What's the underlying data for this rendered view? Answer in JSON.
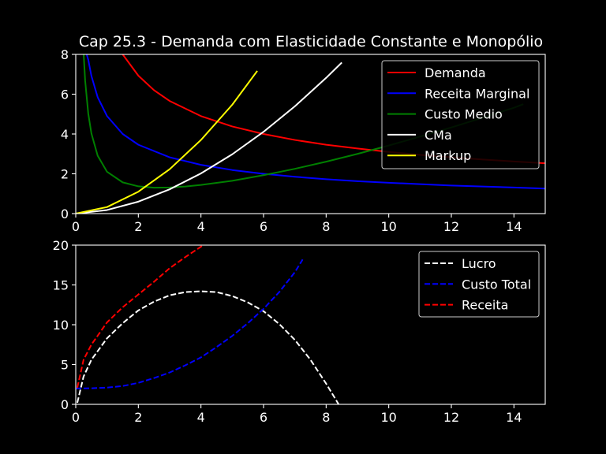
{
  "figure": {
    "title": "Cap 25.3 - Demanda com Elasticidade Constante e Monopólio",
    "background": "#000000",
    "foreground": "#ffffff"
  },
  "chart_data": [
    {
      "type": "line",
      "xlim": [
        0,
        15
      ],
      "ylim": [
        0,
        8
      ],
      "xticks": [
        "0",
        "2",
        "4",
        "6",
        "8",
        "10",
        "12",
        "14"
      ],
      "yticks": [
        "0",
        "2",
        "4",
        "6",
        "8"
      ],
      "xtick_values": [
        0,
        2,
        4,
        6,
        8,
        10,
        12,
        14
      ],
      "ytick_values": [
        0,
        2,
        4,
        6,
        8
      ],
      "legend_position": "top-right",
      "series": [
        {
          "name": "Demanda",
          "color": "#ff0000",
          "dash": false,
          "x": [
            1.5,
            2,
            2.5,
            3,
            4,
            5,
            6,
            7,
            8,
            9,
            10,
            11,
            12,
            13,
            14,
            15
          ],
          "y": [
            8.0,
            6.93,
            6.2,
            5.66,
            4.9,
            4.38,
            4.0,
            3.7,
            3.46,
            3.27,
            3.1,
            2.95,
            2.83,
            2.72,
            2.62,
            2.53
          ]
        },
        {
          "name": "Receita Marginal",
          "color": "#0000ff",
          "dash": false,
          "x": [
            0.35,
            0.4,
            0.5,
            0.7,
            1,
            1.5,
            2,
            3,
            4,
            5,
            6,
            7,
            8,
            9,
            10,
            11,
            12,
            13,
            14,
            15
          ],
          "y": [
            8.0,
            7.73,
            6.92,
            5.85,
            4.9,
            4.0,
            3.46,
            2.83,
            2.45,
            2.19,
            2.0,
            1.85,
            1.73,
            1.63,
            1.55,
            1.48,
            1.41,
            1.36,
            1.31,
            1.26
          ]
        },
        {
          "name": "Custo Medio",
          "color": "#008000",
          "dash": false,
          "x": [
            0.25,
            0.3,
            0.4,
            0.5,
            0.7,
            1,
            1.5,
            2,
            2.5,
            3,
            3.5,
            4,
            5,
            6,
            7,
            8,
            9,
            10,
            11,
            12,
            13,
            14,
            14.3
          ],
          "y": [
            8.08,
            6.69,
            5.02,
            4.03,
            2.91,
            2.1,
            1.57,
            1.37,
            1.3,
            1.31,
            1.36,
            1.44,
            1.65,
            1.93,
            2.25,
            2.61,
            3.0,
            3.42,
            3.87,
            4.33,
            4.82,
            5.32,
            5.5
          ]
        },
        {
          "name": "CMa",
          "color": "#ffffff",
          "dash": false,
          "x": [
            0,
            1,
            2,
            3,
            4,
            5,
            6,
            7,
            8,
            8.5
          ],
          "y": [
            0,
            0.18,
            0.6,
            1.22,
            2.02,
            2.98,
            4.11,
            5.39,
            6.82,
            7.59
          ]
        },
        {
          "name": "Markup",
          "color": "#ffff00",
          "dash": false,
          "x": [
            0,
            1,
            2,
            3,
            4,
            5,
            5.8
          ],
          "y": [
            0,
            0.33,
            1.1,
            2.23,
            3.7,
            5.47,
            7.17
          ]
        }
      ]
    },
    {
      "type": "line",
      "xlim": [
        0,
        15
      ],
      "ylim": [
        0,
        20
      ],
      "xticks": [
        "0",
        "2",
        "4",
        "6",
        "8",
        "10",
        "12",
        "14"
      ],
      "yticks": [
        "0",
        "5",
        "10",
        "15",
        "20"
      ],
      "xtick_values": [
        0,
        2,
        4,
        6,
        8,
        10,
        12,
        14
      ],
      "ytick_values": [
        0,
        5,
        10,
        15,
        20
      ],
      "legend_position": "top-right",
      "series": [
        {
          "name": "Lucro",
          "color": "#ffffff",
          "dash": true,
          "x": [
            0.05,
            0.25,
            0.5,
            1,
            1.5,
            2,
            2.5,
            3,
            3.5,
            4,
            4.5,
            5,
            5.5,
            6,
            6.5,
            7,
            7.5,
            8,
            8.4
          ],
          "y": [
            0.2,
            3.5,
            5.6,
            8.3,
            10.2,
            11.8,
            12.9,
            13.7,
            14.1,
            14.2,
            14.1,
            13.6,
            12.8,
            11.7,
            10.1,
            8.1,
            5.6,
            2.6,
            0.0
          ]
        },
        {
          "name": "Custo Total",
          "color": "#0000ff",
          "dash": true,
          "x": [
            0,
            0.5,
            1,
            1.5,
            2,
            2.5,
            3,
            3.5,
            4,
            4.5,
            5,
            5.5,
            6,
            6.5,
            7,
            7.25
          ],
          "y": [
            2.0,
            2.02,
            2.1,
            2.3,
            2.7,
            3.3,
            4.0,
            4.9,
            5.9,
            7.2,
            8.6,
            10.2,
            12.0,
            14.1,
            16.6,
            18.2
          ]
        },
        {
          "name": "Receita",
          "color": "#ff0000",
          "dash": true,
          "x": [
            0.05,
            0.25,
            0.5,
            1,
            1.5,
            2,
            2.5,
            3,
            3.5,
            4,
            4.05
          ],
          "y": [
            2.1,
            5.6,
            7.5,
            10.3,
            12.2,
            13.8,
            15.4,
            17.1,
            18.5,
            19.8,
            20.0
          ]
        }
      ]
    }
  ]
}
